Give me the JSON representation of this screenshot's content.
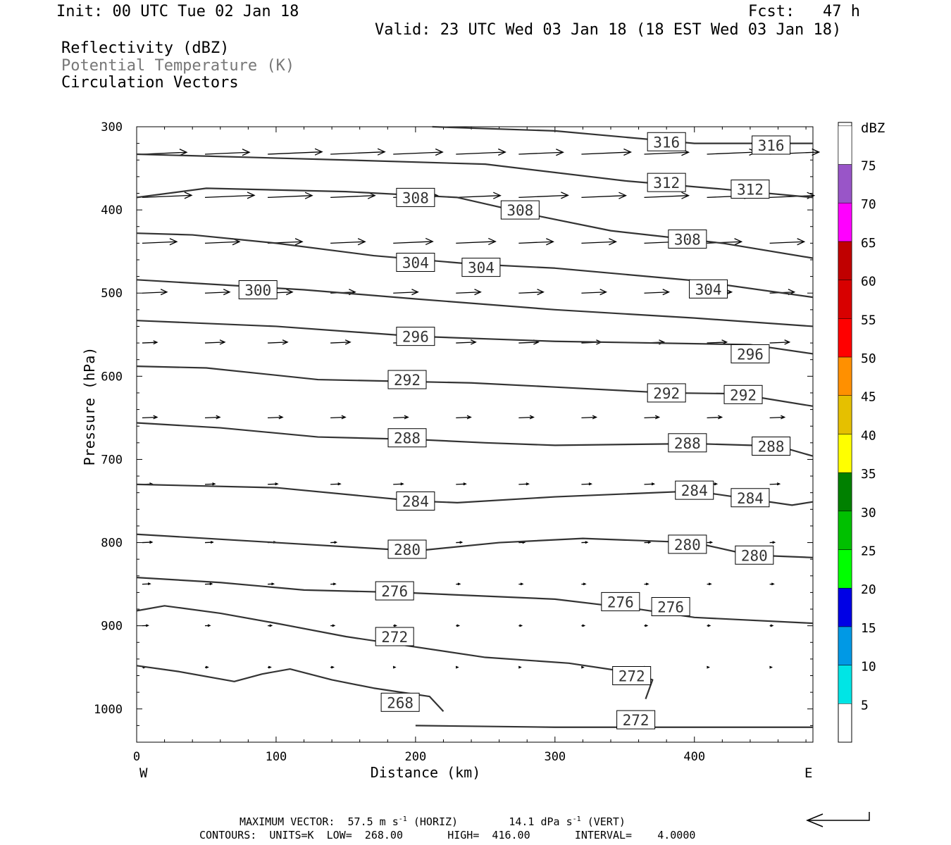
{
  "header": {
    "init": "Init: 00 UTC Tue 02 Jan 18",
    "fcst": "Fcst:   47 h",
    "valid": "Valid: 23 UTC Wed 03 Jan 18 (18 EST Wed 03 Jan 18)"
  },
  "legend_lines": {
    "line1": "Reflectivity (dBZ)",
    "line2": "Potential Temperature (K)",
    "line3": "Circulation Vectors"
  },
  "footer": {
    "max_vector_label": "MAXIMUM VECTOR:",
    "horiz_value": "57.5 m s",
    "horiz_suffix": "(HORIZ)",
    "vert_value": "14.1 dPa s",
    "vert_suffix": "(VERT)",
    "exponent": "-1",
    "contours_line": "CONTOURS:  UNITS=K  LOW=  268.00       HIGH=  416.00       INTERVAL=    4.0000"
  },
  "colors": {
    "contour": "#333333",
    "potential_temperature_text": "#777777"
  },
  "chart_data": {
    "type": "line",
    "xlabel": "Distance (km)",
    "ylabel": "Pressure (hPa)",
    "xlim": [
      0,
      485
    ],
    "ylim": [
      1040,
      300
    ],
    "x_ticks": [
      0,
      100,
      200,
      300,
      400
    ],
    "y_ticks": [
      300,
      400,
      500,
      600,
      700,
      800,
      900,
      1000
    ],
    "x_end_labels": {
      "left": "W",
      "right": "E"
    },
    "series": [
      {
        "label": "316",
        "points": [
          [
            212,
            300
          ],
          [
            300,
            305
          ],
          [
            400,
            320
          ],
          [
            485,
            320
          ]
        ],
        "labels_at": [
          [
            380,
            318
          ],
          [
            455,
            322
          ]
        ]
      },
      {
        "label": "312",
        "points": [
          [
            0,
            333
          ],
          [
            150,
            340
          ],
          [
            250,
            345
          ],
          [
            350,
            365
          ],
          [
            420,
            375
          ],
          [
            485,
            385
          ]
        ],
        "labels_at": [
          [
            380,
            367
          ],
          [
            440,
            375
          ]
        ]
      },
      {
        "label": "308",
        "points": [
          [
            0,
            385
          ],
          [
            50,
            374
          ],
          [
            150,
            378
          ],
          [
            230,
            385
          ],
          [
            290,
            408
          ],
          [
            340,
            425
          ],
          [
            420,
            440
          ],
          [
            485,
            458
          ]
        ],
        "labels_at": [
          [
            200,
            385
          ],
          [
            275,
            400
          ],
          [
            395,
            435
          ]
        ]
      },
      {
        "label": "304",
        "points": [
          [
            0,
            428
          ],
          [
            40,
            430
          ],
          [
            100,
            440
          ],
          [
            170,
            455
          ],
          [
            240,
            465
          ],
          [
            300,
            470
          ],
          [
            400,
            485
          ],
          [
            485,
            505
          ]
        ],
        "labels_at": [
          [
            200,
            463
          ],
          [
            247,
            469
          ],
          [
            410,
            495
          ]
        ]
      },
      {
        "label": "300",
        "points": [
          [
            0,
            484
          ],
          [
            60,
            490
          ],
          [
            120,
            496
          ],
          [
            200,
            507
          ],
          [
            300,
            520
          ],
          [
            400,
            530
          ],
          [
            485,
            540
          ]
        ],
        "labels_at": [
          [
            87,
            496
          ]
        ]
      },
      {
        "label": "296",
        "points": [
          [
            0,
            533
          ],
          [
            100,
            540
          ],
          [
            200,
            552
          ],
          [
            300,
            558
          ],
          [
            440,
            562
          ],
          [
            485,
            573
          ]
        ],
        "labels_at": [
          [
            200,
            552
          ],
          [
            440,
            573
          ]
        ]
      },
      {
        "label": "292",
        "points": [
          [
            0,
            588
          ],
          [
            50,
            590
          ],
          [
            130,
            604
          ],
          [
            240,
            608
          ],
          [
            300,
            613
          ],
          [
            380,
            620
          ],
          [
            430,
            621
          ],
          [
            485,
            636
          ]
        ],
        "labels_at": [
          [
            194,
            604
          ],
          [
            380,
            620
          ],
          [
            435,
            622
          ]
        ]
      },
      {
        "label": "288",
        "points": [
          [
            0,
            656
          ],
          [
            60,
            662
          ],
          [
            130,
            673
          ],
          [
            200,
            676
          ],
          [
            250,
            680
          ],
          [
            300,
            683
          ],
          [
            400,
            681
          ],
          [
            460,
            684
          ],
          [
            485,
            696
          ]
        ],
        "labels_at": [
          [
            194,
            674
          ],
          [
            395,
            680
          ],
          [
            455,
            684
          ]
        ]
      },
      {
        "label": "284",
        "points": [
          [
            0,
            730
          ],
          [
            100,
            734
          ],
          [
            200,
            750
          ],
          [
            230,
            752
          ],
          [
            300,
            745
          ],
          [
            400,
            738
          ],
          [
            470,
            755
          ],
          [
            485,
            751
          ]
        ],
        "labels_at": [
          [
            200,
            750
          ],
          [
            400,
            737
          ],
          [
            440,
            746
          ]
        ]
      },
      {
        "label": "280",
        "points": [
          [
            0,
            790
          ],
          [
            100,
            800
          ],
          [
            200,
            810
          ],
          [
            260,
            800
          ],
          [
            320,
            795
          ],
          [
            400,
            800
          ],
          [
            440,
            815
          ],
          [
            485,
            818
          ]
        ],
        "labels_at": [
          [
            194,
            808
          ],
          [
            395,
            802
          ],
          [
            443,
            815
          ]
        ]
      },
      {
        "label": "276",
        "points": [
          [
            0,
            842
          ],
          [
            60,
            848
          ],
          [
            120,
            857
          ],
          [
            190,
            860
          ],
          [
            300,
            868
          ],
          [
            360,
            880
          ],
          [
            400,
            890
          ],
          [
            485,
            897
          ]
        ],
        "labels_at": [
          [
            185,
            858
          ],
          [
            347,
            871
          ],
          [
            383,
            877
          ]
        ]
      },
      {
        "label": "272",
        "points": [
          [
            0,
            882
          ],
          [
            20,
            876
          ],
          [
            60,
            885
          ],
          [
            100,
            897
          ],
          [
            150,
            913
          ],
          [
            250,
            938
          ],
          [
            310,
            945
          ],
          [
            350,
            955
          ],
          [
            370,
            965
          ],
          [
            365,
            988
          ]
        ],
        "labels_at": [
          [
            185,
            913
          ],
          [
            355,
            960
          ]
        ]
      },
      {
        "label": "272",
        "points": [
          [
            200,
            1020
          ],
          [
            300,
            1022
          ],
          [
            485,
            1022
          ]
        ],
        "labels_at": [
          [
            358,
            1013
          ]
        ]
      },
      {
        "label": "268",
        "points": [
          [
            0,
            948
          ],
          [
            30,
            955
          ],
          [
            70,
            967
          ],
          [
            90,
            958
          ],
          [
            110,
            952
          ],
          [
            140,
            965
          ],
          [
            170,
            975
          ],
          [
            210,
            985
          ],
          [
            220,
            1003
          ]
        ],
        "labels_at": [
          [
            189,
            992
          ]
        ]
      }
    ],
    "vectors": {
      "columns_km": [
        4,
        49,
        94,
        139,
        184,
        229,
        274,
        319,
        364,
        409,
        454
      ],
      "rows": [
        {
          "p": 333,
          "u": [
            0.45,
            0.45,
            0.55,
            0.55,
            0.5,
            0.5,
            0.45,
            0.5,
            0.45,
            0.5,
            0.5
          ]
        },
        {
          "p": 385,
          "u": [
            0.5,
            0.5,
            0.45,
            0.45,
            0.45,
            0.45,
            0.5,
            0.45,
            0.45,
            0.45,
            0.45
          ]
        },
        {
          "p": 440,
          "u": [
            0.35,
            0.35,
            0.35,
            0.35,
            0.4,
            0.4,
            0.35,
            0.35,
            0.35,
            0.35,
            0.35
          ]
        },
        {
          "p": 500,
          "u": [
            0.25,
            0.25,
            0.25,
            0.25,
            0.25,
            0.25,
            0.25,
            0.25,
            0.25,
            0.25,
            0.25
          ]
        },
        {
          "p": 560,
          "u": [
            0.15,
            0.2,
            0.2,
            0.2,
            0.2,
            0.2,
            0.2,
            0.2,
            0.2,
            0.2,
            0.2
          ]
        },
        {
          "p": 650,
          "u": [
            0.15,
            0.15,
            0.15,
            0.15,
            0.15,
            0.15,
            0.15,
            0.15,
            0.15,
            0.15,
            0.15
          ]
        },
        {
          "p": 730,
          "u": [
            0.1,
            0.1,
            0.1,
            0.1,
            0.1,
            0.1,
            0.1,
            0.1,
            0.1,
            0.1,
            0.1
          ]
        },
        {
          "p": 800,
          "u": [
            0.1,
            0.08,
            0.08,
            0.06,
            0.06,
            0.06,
            0.06,
            0.06,
            0.06,
            0.05,
            0.05
          ]
        },
        {
          "p": 850,
          "u": [
            0.08,
            0.07,
            0.06,
            0.05,
            0.04,
            0.04,
            0.04,
            0.04,
            0.04,
            0.04,
            0.04
          ]
        },
        {
          "p": 900,
          "u": [
            0.06,
            0.05,
            0.04,
            0.04,
            0.03,
            0.03,
            0.03,
            0.03,
            0.03,
            0.03,
            0.03
          ]
        },
        {
          "p": 950,
          "u": [
            0.03,
            0.03,
            0.03,
            0.03,
            0.02,
            0.02,
            0.02,
            0.02,
            0.02,
            0.02,
            0.02
          ]
        }
      ]
    },
    "colorbar": {
      "title": "dBZ",
      "levels": [
        5,
        10,
        15,
        20,
        25,
        30,
        35,
        40,
        45,
        50,
        55,
        60,
        65,
        70,
        75
      ],
      "colors": [
        "#00e5e5",
        "#0099e5",
        "#0000e5",
        "#00ff00",
        "#00c000",
        "#008000",
        "#ffff00",
        "#e5c000",
        "#ff9000",
        "#ff0000",
        "#d80000",
        "#c00000",
        "#ff00ff",
        "#9955c8",
        "#ffffff"
      ]
    }
  }
}
